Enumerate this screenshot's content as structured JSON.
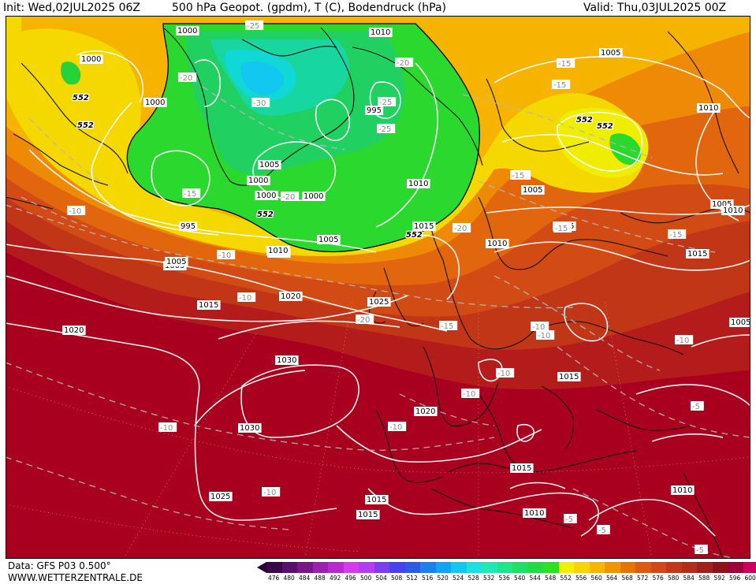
{
  "header": {
    "init": "Init: Wed,02JUL2025 06Z",
    "title": "500 hPa Geopot. (gpdm), T (C), Bodendruck (hPa)",
    "valid": "Valid: Thu,03JUL2025 00Z"
  },
  "footer": {
    "data_source": "Data: GFS P03 0.500°",
    "website": "WWW.WETTERZENTRALE.DE"
  },
  "colors": {
    "geopotential_fill_scale": [
      "#3a0648",
      "#58106a",
      "#7a168a",
      "#9a20b0",
      "#b82ad0",
      "#d43aee",
      "#b43cf0",
      "#7c3cf0",
      "#4a40ee",
      "#2c5ae6",
      "#1c80ee",
      "#10a4f2",
      "#12c8f0",
      "#1ae0de",
      "#1ee8b4",
      "#1ee48a",
      "#1ee066",
      "#20dc42",
      "#2ce024",
      "#f0f000",
      "#f8d400",
      "#f8b400",
      "#f09400",
      "#e67400",
      "#dc5a12",
      "#d24818",
      "#c2381a",
      "#b22c1c",
      "#a0201c",
      "#8c1418",
      "#a0003a",
      "#d00060"
    ],
    "scale_arrow_low": "#2a0030",
    "scale_arrow_high": "#e0006e"
  },
  "colorbar": {
    "ticks": [
      "476",
      "480",
      "484",
      "488",
      "492",
      "496",
      "500",
      "504",
      "508",
      "512",
      "516",
      "520",
      "524",
      "528",
      "532",
      "536",
      "540",
      "544",
      "548",
      "552",
      "556",
      "560",
      "564",
      "568",
      "572",
      "576",
      "580",
      "584",
      "588",
      "592",
      "596",
      "600"
    ]
  },
  "isobar_labels": [
    {
      "text": "1000"
    },
    {
      "text": "1000"
    },
    {
      "text": "1010"
    },
    {
      "text": "1000"
    },
    {
      "text": "1005"
    },
    {
      "text": "1000"
    },
    {
      "text": "1000"
    },
    {
      "text": "995"
    },
    {
      "text": "1005"
    },
    {
      "text": "1010"
    },
    {
      "text": "1000"
    },
    {
      "text": "1005"
    },
    {
      "text": "995"
    },
    {
      "text": "1005"
    },
    {
      "text": "1010"
    },
    {
      "text": "1015"
    },
    {
      "text": "1015"
    },
    {
      "text": "1025"
    },
    {
      "text": "1010"
    },
    {
      "text": "1020"
    },
    {
      "text": "1020"
    },
    {
      "text": "1030"
    },
    {
      "text": "1030"
    },
    {
      "text": "1020"
    },
    {
      "text": "1025"
    },
    {
      "text": "1015"
    },
    {
      "text": "1015"
    },
    {
      "text": "1015"
    },
    {
      "text": "1015"
    },
    {
      "text": "1010"
    },
    {
      "text": "1005"
    },
    {
      "text": "1010"
    },
    {
      "text": "1005"
    },
    {
      "text": "1005"
    },
    {
      "text": "1010"
    },
    {
      "text": "1010"
    },
    {
      "text": "1015"
    },
    {
      "text": "1010"
    },
    {
      "text": "1005"
    },
    {
      "text": "1015"
    }
  ],
  "temperature_labels": [
    {
      "text": "-25"
    },
    {
      "text": "-20"
    },
    {
      "text": "-20"
    },
    {
      "text": "-30"
    },
    {
      "text": "-25"
    },
    {
      "text": "-25"
    },
    {
      "text": "-15"
    },
    {
      "text": "-15"
    },
    {
      "text": "-20"
    },
    {
      "text": "-15"
    },
    {
      "text": "-10"
    },
    {
      "text": "-20"
    },
    {
      "text": "-10"
    },
    {
      "text": "-10"
    },
    {
      "text": "-20"
    },
    {
      "text": "-15"
    },
    {
      "text": "-10"
    },
    {
      "text": "-10"
    },
    {
      "text": "-10"
    },
    {
      "text": "-10"
    },
    {
      "text": "-10"
    },
    {
      "text": "-10"
    },
    {
      "text": "-10"
    },
    {
      "text": "-15"
    },
    {
      "text": "-15"
    },
    {
      "text": "-15"
    },
    {
      "text": "-15"
    },
    {
      "text": "-10"
    },
    {
      "text": "-5"
    },
    {
      "text": "-5"
    },
    {
      "text": "-5"
    },
    {
      "text": "-5"
    }
  ],
  "geopotential_labels": [
    {
      "text": "552"
    },
    {
      "text": "552"
    },
    {
      "text": "552"
    },
    {
      "text": "552"
    },
    {
      "text": "552"
    },
    {
      "text": "552"
    }
  ]
}
